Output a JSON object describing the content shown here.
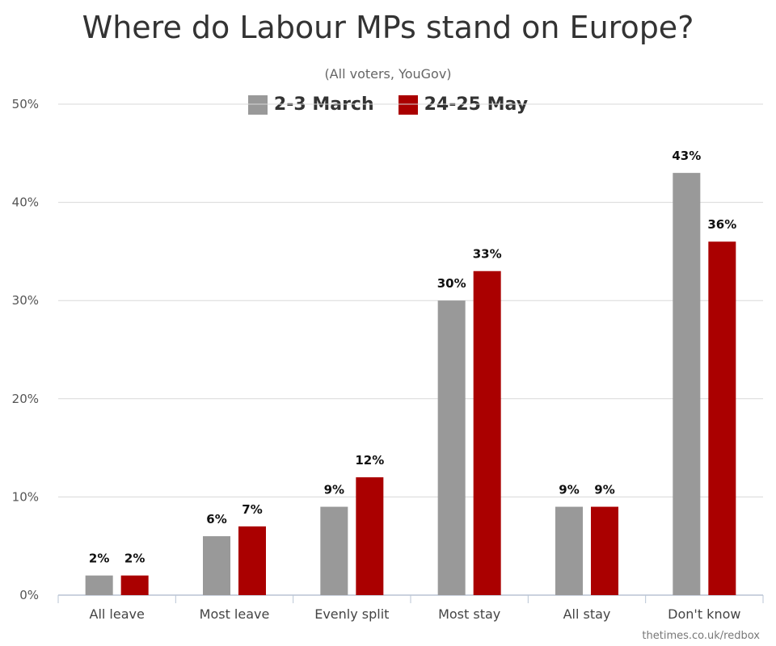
{
  "chart_data": {
    "type": "bar",
    "title": "Where do Labour MPs stand on Europe?",
    "subtitle": "(All voters, YouGov)",
    "categories": [
      "All leave",
      "Most leave",
      "Evenly split",
      "Most stay",
      "All stay",
      "Don't know"
    ],
    "series": [
      {
        "name": "2-3 March",
        "color": "#999999",
        "values": [
          2,
          6,
          9,
          30,
          9,
          43
        ]
      },
      {
        "name": "24-25 May",
        "color": "#aa0000",
        "values": [
          2,
          7,
          12,
          33,
          9,
          36
        ]
      }
    ],
    "value_suffix": "%",
    "ylim": [
      0,
      50
    ],
    "yticks": [
      0,
      10,
      20,
      30,
      40,
      50
    ],
    "ytick_labels": [
      "0%",
      "10%",
      "20%",
      "30%",
      "40%",
      "50%"
    ],
    "grid": true,
    "legend_position": "top-center",
    "xlabel": "",
    "ylabel": ""
  },
  "source_credit": "thetimes.co.uk/redbox"
}
